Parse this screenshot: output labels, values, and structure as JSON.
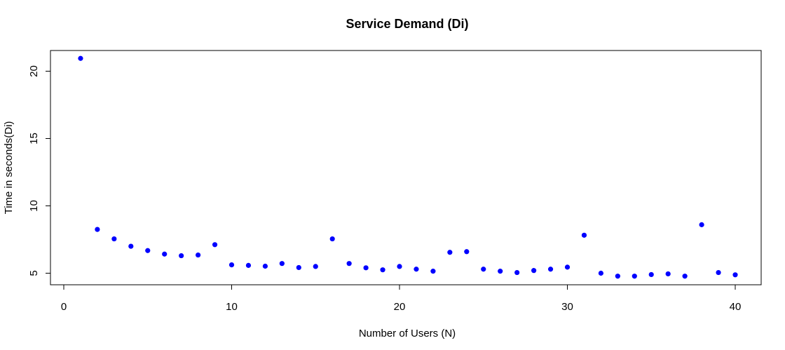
{
  "chart_data": {
    "type": "scatter",
    "title": "Service Demand (Di)",
    "xlabel": "Number of Users (N)",
    "ylabel": "Time in seconds(Di)",
    "xlim": [
      0,
      40
    ],
    "ylim": [
      5,
      21
    ],
    "x_ticks": [
      0,
      10,
      20,
      30,
      40
    ],
    "y_ticks": [
      5,
      10,
      15,
      20
    ],
    "x_tick_labels": [
      "0",
      "10",
      "20",
      "30",
      "40"
    ],
    "y_tick_labels": [
      "5",
      "10",
      "15",
      "20"
    ],
    "grid": false,
    "point_color": "#0000ff",
    "series": [
      {
        "x": [
          1,
          2,
          3,
          4,
          5,
          6,
          7,
          8,
          9,
          10,
          11,
          12,
          13,
          14,
          15,
          16,
          17,
          18,
          19,
          20,
          21,
          22,
          23,
          24,
          25,
          26,
          27,
          28,
          29,
          30,
          31,
          32,
          33,
          34,
          35,
          36,
          37,
          38,
          39,
          40
        ],
        "y": [
          20.95,
          8.25,
          7.55,
          7.0,
          6.68,
          6.42,
          6.3,
          6.35,
          7.12,
          5.62,
          5.58,
          5.52,
          5.72,
          5.42,
          5.5,
          7.55,
          5.72,
          5.4,
          5.25,
          5.5,
          5.3,
          5.15,
          6.55,
          6.6,
          5.3,
          5.15,
          5.05,
          5.2,
          5.3,
          5.45,
          7.82,
          5.0,
          4.78,
          4.78,
          4.9,
          4.95,
          4.78,
          8.6,
          5.05,
          4.88
        ]
      }
    ]
  }
}
